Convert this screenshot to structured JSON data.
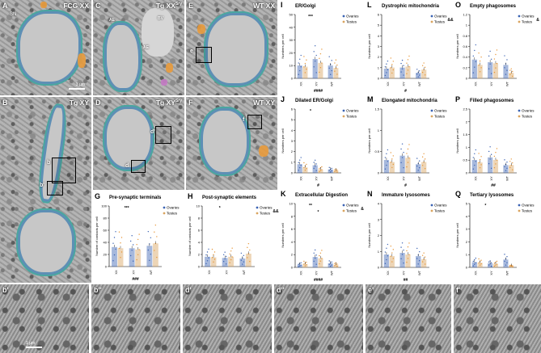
{
  "panels": {
    "A": {
      "letter": "A",
      "title": "FCG XX",
      "labels": [
        "SN"
      ],
      "scale": "3 µm"
    },
    "B": {
      "letter": "B",
      "title": "Tg XY",
      "boxes": [
        "b",
        "b'"
      ]
    },
    "C": {
      "letter": "C",
      "title": "Tg XX",
      "title_sup": "Sry",
      "labels": [
        "AE",
        "BV",
        "AE"
      ]
    },
    "D": {
      "letter": "D",
      "title": "Tg XY",
      "title_sup": "Sry",
      "boxes": [
        "d'",
        "d"
      ]
    },
    "E": {
      "letter": "E",
      "title": "WT XX",
      "boxes": [
        "e"
      ]
    },
    "F": {
      "letter": "F",
      "title": "WT XY",
      "boxes": [
        "f"
      ]
    }
  },
  "bottom": {
    "labels": [
      "b'",
      "b''",
      "d'",
      "d''",
      "e'",
      "f'"
    ],
    "scale": "1 µm"
  },
  "colors": {
    "ovaries": "#3b63b3",
    "testes": "#d9a45f",
    "dots_blue": "#3b63b3",
    "dots_orange": "#e8983a"
  },
  "chart_data": [
    {
      "id": "G",
      "type": "bar",
      "title": "Pre-synaptic terminals",
      "ylabel": "Number of contacts per cell",
      "categories": [
        "XX",
        "XY",
        "WT"
      ],
      "ylim": [
        0,
        100
      ],
      "yticks": [
        0,
        20,
        40,
        60,
        80,
        100
      ],
      "series": [
        {
          "name": "Ovaries",
          "values": [
            32,
            30,
            34
          ]
        },
        {
          "name": "Testes",
          "values": [
            30,
            28,
            38
          ]
        }
      ],
      "annotations": [
        "***",
        "###"
      ]
    },
    {
      "id": "H",
      "type": "bar",
      "title": "Post-synaptic elements",
      "ylabel": "Number of contacts per cell",
      "categories": [
        "XX",
        "XY",
        "WT"
      ],
      "ylim": [
        0,
        10
      ],
      "yticks": [
        0,
        2,
        4,
        6,
        8,
        10
      ],
      "series": [
        {
          "name": "Ovaries",
          "values": [
            1.6,
            1.4,
            1.3
          ]
        },
        {
          "name": "Testes",
          "values": [
            1.5,
            1.6,
            2.1
          ]
        }
      ],
      "annotations": [
        "*",
        "&&"
      ]
    },
    {
      "id": "I",
      "type": "bar",
      "title": "ER/Golgi",
      "ylabel": "Numbers per cell",
      "categories": [
        "XX",
        "XY",
        "WT"
      ],
      "ylim": [
        0,
        50
      ],
      "yticks": [
        0,
        10,
        20,
        30,
        40,
        50
      ],
      "series": [
        {
          "name": "Ovaries",
          "values": [
            10,
            15,
            10
          ]
        },
        {
          "name": "Testes",
          "values": [
            9,
            12,
            8
          ]
        }
      ],
      "annotations": [
        "***",
        "####"
      ]
    },
    {
      "id": "J",
      "type": "bar",
      "title": "Dilated ER/Golgi",
      "ylabel": "Numbers per cell",
      "categories": [
        "XX",
        "XY",
        "WT"
      ],
      "ylim": [
        0,
        6
      ],
      "yticks": [
        0,
        1,
        2,
        3,
        4,
        5,
        6
      ],
      "series": [
        {
          "name": "Ovaries",
          "values": [
            0.8,
            0.7,
            0.3
          ]
        },
        {
          "name": "Testes",
          "values": [
            0.5,
            0.3,
            0.2
          ]
        }
      ],
      "annotations": [
        "*",
        "#"
      ]
    },
    {
      "id": "K",
      "type": "bar",
      "title": "Extracellular Digestion",
      "ylabel": "Numbers per cell",
      "categories": [
        "XX",
        "XY",
        "WT"
      ],
      "ylim": [
        0,
        10
      ],
      "yticks": [
        0,
        2,
        4,
        6,
        8,
        10
      ],
      "series": [
        {
          "name": "Ovaries",
          "values": [
            0.4,
            1.6,
            0.6
          ]
        },
        {
          "name": "Testes",
          "values": [
            0.5,
            1.4,
            0.4
          ]
        }
      ],
      "annotations": [
        "**",
        "*",
        "&",
        "####"
      ]
    },
    {
      "id": "L",
      "type": "bar",
      "title": "Dystrophic mitochondria",
      "ylabel": "Numbers per cell",
      "categories": [
        "XX",
        "XY",
        "WT"
      ],
      "ylim": [
        0,
        6
      ],
      "yticks": [
        0,
        1,
        2,
        3,
        4,
        5,
        6
      ],
      "series": [
        {
          "name": "Ovaries",
          "values": [
            0.9,
            1.0,
            0.5
          ]
        },
        {
          "name": "Testes",
          "values": [
            1.0,
            1.1,
            0.8
          ]
        }
      ],
      "annotations": [
        "&&",
        "#"
      ]
    },
    {
      "id": "M",
      "type": "bar",
      "title": "Elongated mitochondria",
      "ylabel": "Numbers per cell",
      "categories": [
        "XX",
        "XY",
        "WT"
      ],
      "ylim": [
        0,
        1.5
      ],
      "yticks": [
        0,
        0.5,
        1.0,
        1.5
      ],
      "series": [
        {
          "name": "Ovaries",
          "values": [
            0.3,
            0.4,
            0.2
          ]
        },
        {
          "name": "Testes",
          "values": [
            0.25,
            0.35,
            0.25
          ]
        }
      ],
      "annotations": [
        "#"
      ]
    },
    {
      "id": "N",
      "type": "bar",
      "title": "Immature lysosomes",
      "ylabel": "Numbers per cell",
      "categories": [
        "XX",
        "XY",
        "WT"
      ],
      "ylim": [
        0,
        4
      ],
      "yticks": [
        0,
        1,
        2,
        3,
        4
      ],
      "series": [
        {
          "name": "Ovaries",
          "values": [
            0.8,
            0.9,
            0.7
          ]
        },
        {
          "name": "Testes",
          "values": [
            0.7,
            0.8,
            0.5
          ]
        }
      ],
      "annotations": [
        "##"
      ]
    },
    {
      "id": "O",
      "type": "bar",
      "title": "Empty phagosomes",
      "ylabel": "Numbers per cell",
      "categories": [
        "XX",
        "XY",
        "WT"
      ],
      "ylim": [
        0,
        1.2
      ],
      "yticks": [
        0,
        0.2,
        0.4,
        0.6,
        0.8,
        1.0,
        1.2
      ],
      "series": [
        {
          "name": "Ovaries",
          "values": [
            0.35,
            0.3,
            0.25
          ]
        },
        {
          "name": "Testes",
          "values": [
            0.25,
            0.28,
            0.1
          ]
        }
      ],
      "annotations": [
        "&"
      ]
    },
    {
      "id": "P",
      "type": "bar",
      "title": "Filled phagosomes",
      "ylabel": "Numbers per cell",
      "categories": [
        "XX",
        "XY",
        "WT"
      ],
      "ylim": [
        0,
        2.5
      ],
      "yticks": [
        0,
        0.5,
        1.0,
        1.5,
        2.0,
        2.5
      ],
      "series": [
        {
          "name": "Ovaries",
          "values": [
            0.5,
            0.6,
            0.3
          ]
        },
        {
          "name": "Testes",
          "values": [
            0.4,
            0.5,
            0.3
          ]
        }
      ],
      "annotations": [
        "##"
      ]
    },
    {
      "id": "Q",
      "type": "bar",
      "title": "Tertiary lysosomes",
      "ylabel": "Numbers per cell",
      "categories": [
        "XX",
        "XY",
        "WT"
      ],
      "ylim": [
        0,
        5
      ],
      "yticks": [
        0,
        1,
        2,
        3,
        4,
        5
      ],
      "series": [
        {
          "name": "Ovaries",
          "values": [
            0.4,
            0.3,
            0.6
          ]
        },
        {
          "name": "Testes",
          "values": [
            0.35,
            0.25,
            0.1
          ]
        }
      ],
      "annotations": [
        "*"
      ]
    }
  ]
}
